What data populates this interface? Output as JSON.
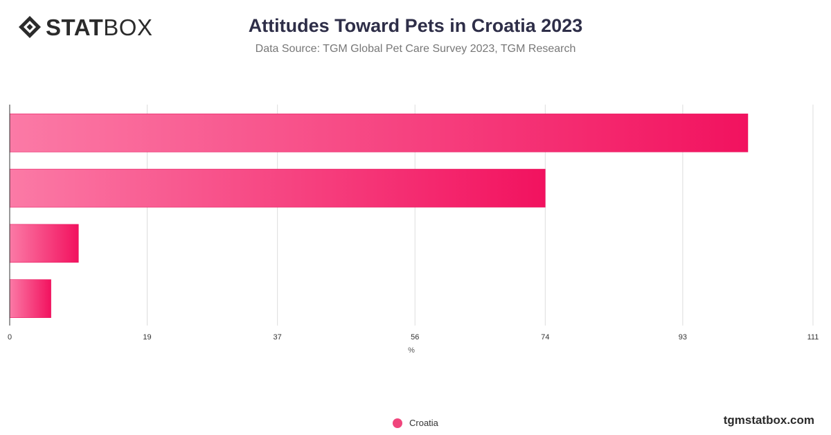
{
  "header": {
    "logo_bold": "STAT",
    "logo_light": "BOX",
    "title": "Attitudes Toward Pets in Croatia 2023",
    "subtitle": "Data Source: TGM Global Pet Care Survey 2023, TGM Research"
  },
  "chart_data": {
    "type": "bar",
    "orientation": "horizontal",
    "categories": [
      "",
      "",
      "",
      ""
    ],
    "series": [
      {
        "name": "Croatia",
        "values": [
          102,
          74,
          9.5,
          5.7
        ],
        "color": "#f0457c",
        "gradient": [
          "#fb7aa6",
          "#f2125f"
        ]
      }
    ],
    "xlabel": "%",
    "ylabel": "",
    "xlim": [
      0,
      111
    ],
    "x_ticks": [
      "0",
      "19",
      "37",
      "56",
      "74",
      "93",
      "111"
    ],
    "grid": true,
    "legend_position": "bottom-center"
  },
  "legend": {
    "label": "Croatia"
  },
  "footer": {
    "brand": "tgmstatbox.com"
  }
}
